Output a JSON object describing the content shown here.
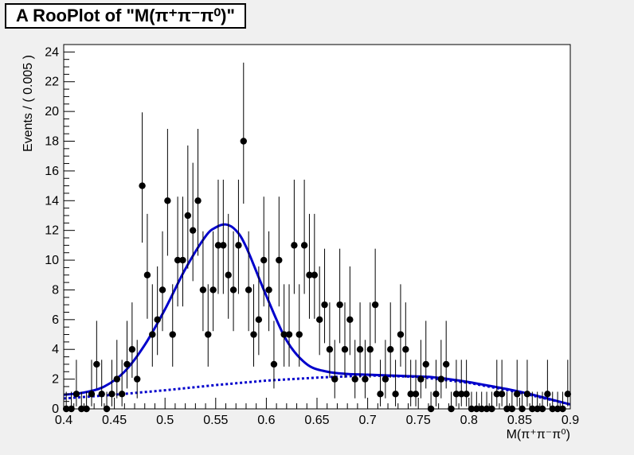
{
  "chart_data": {
    "type": "scatter",
    "title": "A RooPlot of \"M(π⁺π⁻π⁰)\"",
    "xlabel": "M(π⁺π⁻π⁰)",
    "ylabel": "Events / ( 0.005 )",
    "xlim": [
      0.4,
      0.9
    ],
    "ylim": [
      0,
      24.5
    ],
    "x_ticks": [
      "0.4",
      "0.45",
      "0.5",
      "0.55",
      "0.6",
      "0.65",
      "0.7",
      "0.75",
      "0.8",
      "0.85",
      "0.9"
    ],
    "y_ticks": [
      "0",
      "2",
      "4",
      "6",
      "8",
      "10",
      "12",
      "14",
      "16",
      "18",
      "20",
      "22",
      "24"
    ],
    "grid": false,
    "legend": "none",
    "colors": {
      "data": "#000000",
      "fit": "#0000cc",
      "background": "#0000cc",
      "frame": "#000000"
    },
    "points": {
      "x": [
        0.4025,
        0.4075,
        0.4125,
        0.4175,
        0.4225,
        0.4275,
        0.4325,
        0.4375,
        0.4425,
        0.4475,
        0.4525,
        0.4575,
        0.4625,
        0.4675,
        0.4725,
        0.4775,
        0.4825,
        0.4875,
        0.4925,
        0.4975,
        0.5025,
        0.5075,
        0.5125,
        0.5175,
        0.5225,
        0.5275,
        0.5325,
        0.5375,
        0.5425,
        0.5475,
        0.5525,
        0.5575,
        0.5625,
        0.5675,
        0.5725,
        0.5775,
        0.5825,
        0.5875,
        0.5925,
        0.5975,
        0.6025,
        0.6075,
        0.6125,
        0.6175,
        0.6225,
        0.6275,
        0.6325,
        0.6375,
        0.6425,
        0.6475,
        0.6525,
        0.6575,
        0.6625,
        0.6675,
        0.6725,
        0.6775,
        0.6825,
        0.6875,
        0.6925,
        0.6975,
        0.7025,
        0.7075,
        0.7125,
        0.7175,
        0.7225,
        0.7275,
        0.7325,
        0.7375,
        0.7425,
        0.7475,
        0.7525,
        0.7575,
        0.7625,
        0.7675,
        0.7725,
        0.7775,
        0.7825,
        0.7875,
        0.7925,
        0.7975,
        0.8025,
        0.8075,
        0.8125,
        0.8175,
        0.8225,
        0.8275,
        0.8325,
        0.8375,
        0.8425,
        0.8475,
        0.8525,
        0.8575,
        0.8625,
        0.8675,
        0.8725,
        0.8775,
        0.8825,
        0.8875,
        0.8925,
        0.8975
      ],
      "y": [
        0,
        0,
        1,
        0,
        0,
        1,
        3,
        1,
        0,
        1,
        2,
        1,
        3,
        4,
        2,
        15,
        9,
        5,
        6,
        8,
        14,
        5,
        10,
        10,
        13,
        12,
        14,
        8,
        5,
        8,
        11,
        11,
        9,
        8,
        11,
        18,
        8,
        5,
        6,
        10,
        8,
        3,
        10,
        5,
        5,
        11,
        5,
        11,
        9,
        9,
        6,
        7,
        4,
        2,
        7,
        4,
        6,
        2,
        4,
        2,
        4,
        7,
        1,
        2,
        4,
        1,
        5,
        4,
        1,
        1,
        2,
        3,
        0,
        1,
        2,
        3,
        0,
        1,
        1,
        1,
        0,
        0,
        0,
        0,
        0,
        1,
        1,
        0,
        0,
        1,
        0,
        1,
        0,
        0,
        0,
        1,
        0,
        0,
        0,
        1
      ],
      "err_low": [
        0,
        0,
        0.83,
        0,
        0,
        0.83,
        1.63,
        0.83,
        0,
        0.83,
        1.29,
        0.83,
        1.63,
        1.91,
        1.29,
        3.82,
        2.94,
        2.16,
        2.38,
        2.77,
        3.7,
        2.16,
        3.11,
        3.11,
        3.57,
        3.41,
        3.7,
        2.77,
        2.16,
        2.77,
        3.27,
        3.27,
        2.94,
        2.77,
        3.27,
        4.2,
        2.77,
        2.16,
        2.38,
        3.11,
        2.77,
        1.63,
        3.11,
        2.16,
        2.16,
        3.27,
        2.16,
        3.27,
        2.94,
        2.94,
        2.38,
        2.58,
        1.91,
        1.29,
        2.58,
        1.91,
        2.38,
        1.29,
        1.91,
        1.29,
        1.91,
        2.58,
        0.83,
        1.29,
        1.91,
        0.83,
        2.16,
        1.91,
        0.83,
        0.83,
        1.29,
        1.63,
        0,
        0.83,
        1.29,
        1.63,
        0,
        0.83,
        0.83,
        0.83,
        0,
        0,
        0,
        0,
        0,
        0.83,
        0.83,
        0,
        0,
        0.83,
        0,
        0.83,
        0,
        0,
        0,
        0.83,
        0,
        0,
        0,
        0.83
      ],
      "err_high": [
        1.15,
        1.15,
        2.3,
        1.15,
        1.15,
        2.3,
        2.92,
        2.3,
        1.15,
        2.3,
        2.64,
        2.3,
        2.92,
        3.16,
        2.64,
        4.94,
        4.11,
        3.38,
        3.58,
        3.94,
        4.83,
        3.38,
        4.27,
        4.27,
        4.71,
        4.55,
        4.83,
        3.94,
        3.38,
        3.94,
        4.41,
        4.41,
        4.11,
        3.94,
        4.41,
        5.28,
        3.94,
        3.38,
        3.58,
        4.27,
        3.94,
        2.92,
        4.27,
        3.38,
        3.38,
        4.41,
        3.38,
        4.41,
        4.11,
        4.11,
        3.58,
        3.77,
        3.16,
        2.64,
        3.77,
        3.16,
        3.58,
        2.64,
        3.16,
        2.64,
        3.16,
        3.77,
        2.3,
        2.64,
        3.16,
        2.3,
        3.38,
        3.16,
        2.3,
        2.3,
        2.64,
        2.92,
        1.15,
        2.3,
        2.64,
        2.92,
        1.15,
        2.3,
        2.3,
        2.3,
        1.15,
        1.15,
        1.15,
        1.15,
        1.15,
        2.3,
        2.3,
        1.15,
        1.15,
        2.3,
        1.15,
        2.3,
        1.15,
        1.15,
        1.15,
        2.3,
        1.15,
        1.15,
        1.15,
        2.3
      ]
    },
    "fit_curve": {
      "x": [
        0.4,
        0.42,
        0.44,
        0.46,
        0.48,
        0.5,
        0.52,
        0.54,
        0.55,
        0.56,
        0.57,
        0.58,
        0.6,
        0.62,
        0.64,
        0.66,
        0.68,
        0.7,
        0.72,
        0.74,
        0.76,
        0.78,
        0.8,
        0.82,
        0.84,
        0.86,
        0.88,
        0.9
      ],
      "y": [
        0.95,
        1.1,
        1.5,
        2.5,
        4.3,
        6.7,
        9.4,
        11.6,
        12.2,
        12.4,
        12.0,
        10.9,
        7.6,
        4.6,
        3.0,
        2.5,
        2.35,
        2.3,
        2.25,
        2.2,
        2.15,
        2.0,
        1.8,
        1.55,
        1.3,
        1.0,
        0.65,
        0.3
      ]
    },
    "background_curve": {
      "x": [
        0.4,
        0.45,
        0.5,
        0.55,
        0.6,
        0.65,
        0.7,
        0.75,
        0.8,
        0.85,
        0.9
      ],
      "y": [
        0.7,
        0.95,
        1.25,
        1.6,
        1.9,
        2.1,
        2.25,
        2.15,
        1.75,
        1.1,
        0.3
      ]
    }
  }
}
